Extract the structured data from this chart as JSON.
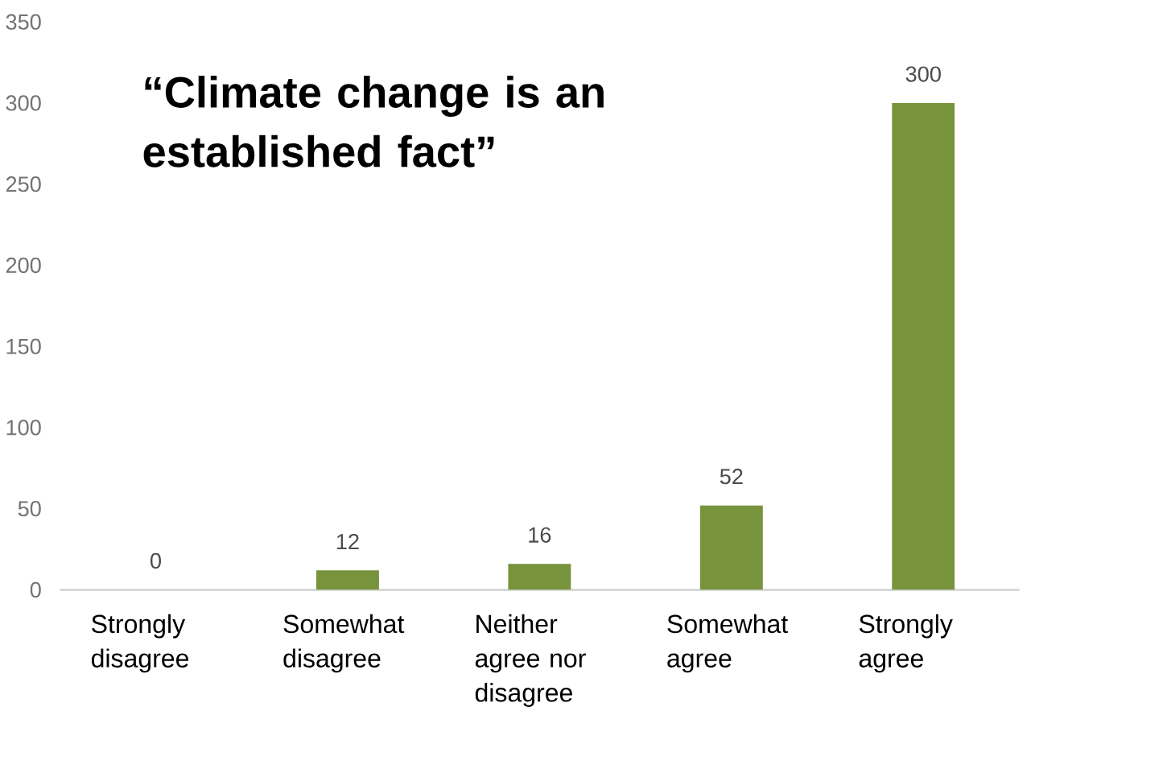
{
  "chart_data": {
    "type": "bar",
    "title": "“Climate change is an established fact”",
    "categories": [
      "Strongly disagree",
      "Somewhat disagree",
      "Neither agree nor disagree",
      "Somewhat agree",
      "Strongly agree"
    ],
    "values": [
      0,
      12,
      16,
      52,
      300
    ],
    "color": "#77933c",
    "ylim": [
      0,
      350
    ],
    "yticks": [
      0,
      50,
      100,
      150,
      200,
      250,
      300,
      350
    ],
    "data_labels": true
  }
}
